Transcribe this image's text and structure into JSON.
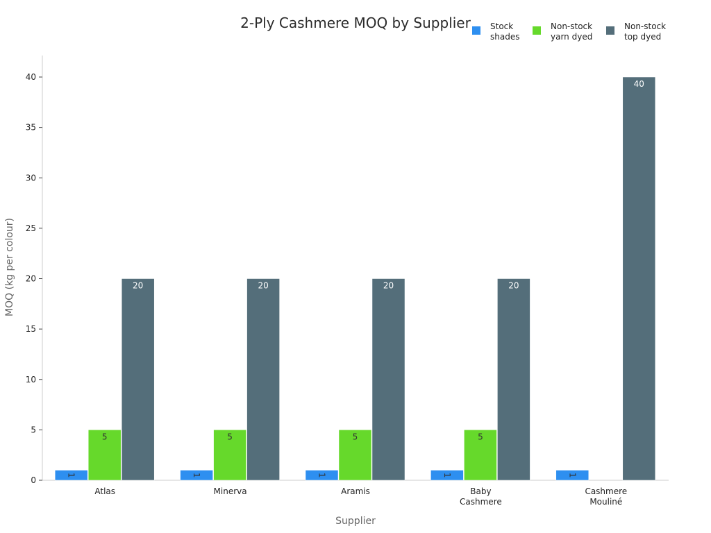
{
  "chart_data": {
    "type": "bar",
    "title": "2-Ply Cashmere MOQ by Supplier",
    "xlabel": "Supplier",
    "ylabel": "MOQ (kg per colour)",
    "categories": [
      [
        "Atlas"
      ],
      [
        "Minerva"
      ],
      [
        "Aramis"
      ],
      [
        "Baby",
        "Cashmere"
      ],
      [
        "Cashmere",
        "Mouliné"
      ]
    ],
    "series": [
      {
        "name": [
          "Stock",
          "shades"
        ],
        "color": "#2e8ff0",
        "values": [
          1,
          1,
          1,
          1,
          1
        ],
        "label_color": "#333333",
        "label_rotated": true
      },
      {
        "name": [
          "Non-stock",
          "yarn dyed"
        ],
        "color": "#66d92b",
        "values": [
          5,
          5,
          5,
          5,
          null
        ],
        "label_color": "#333333",
        "label_rotated": false
      },
      {
        "name": [
          "Non-stock",
          "top dyed"
        ],
        "color": "#546e7a",
        "values": [
          20,
          20,
          20,
          20,
          40
        ],
        "label_color": "#ffffff",
        "label_rotated": false
      }
    ],
    "ylim": [
      0,
      40
    ],
    "yticks": [
      0,
      5,
      10,
      15,
      20,
      25,
      30,
      35,
      40
    ],
    "grid": false,
    "legend_position": "top-right",
    "axis_color": "#cccccc"
  }
}
